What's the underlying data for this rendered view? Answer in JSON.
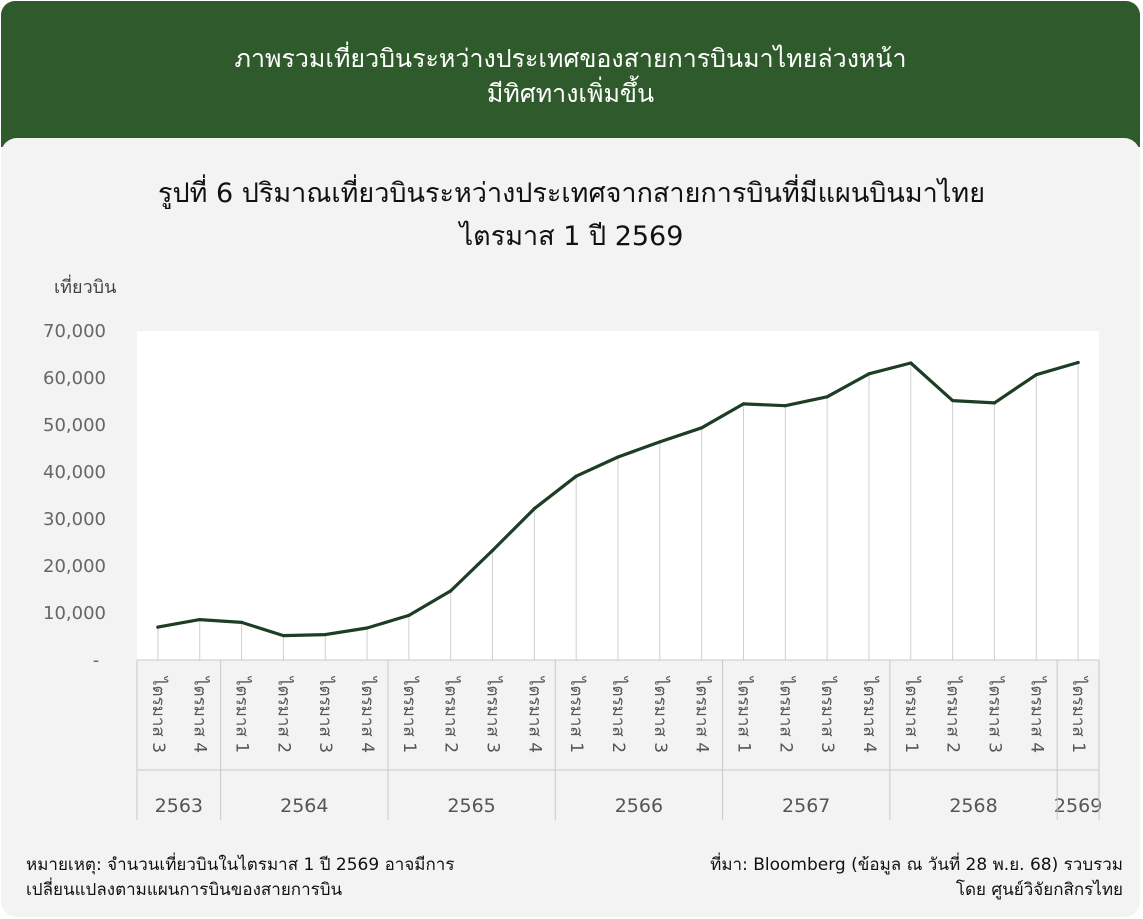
{
  "header": {
    "line1": "ภาพรวมเที่ยวบินระหว่างประเทศของสายการบินมาไทยล่วงหน้า",
    "line2": "มีทิศทางเพิ่มขึ้น"
  },
  "chart_data": {
    "type": "line",
    "title_line1": "รูปที่ 6 ปริมาณเที่ยวบินระหว่างประเทศจากสายการบินที่มีแผนบินมาไทย",
    "title_line2": "ไตรมาส 1 ปี 2569",
    "ylabel": "เที่ยวบิน",
    "ylim": [
      0,
      70000
    ],
    "yticks": [
      {
        "value": 0,
        "label": "-"
      },
      {
        "value": 10000,
        "label": "10,000"
      },
      {
        "value": 20000,
        "label": "20,000"
      },
      {
        "value": 30000,
        "label": "30,000"
      },
      {
        "value": 40000,
        "label": "40,000"
      },
      {
        "value": 50000,
        "label": "50,000"
      },
      {
        "value": 60000,
        "label": "60,000"
      },
      {
        "value": 70000,
        "label": "70,000"
      }
    ],
    "categories": [
      "ไตรมาส 3",
      "ไตรมาส 4",
      "ไตรมาส 1",
      "ไตรมาส 2",
      "ไตรมาส 3",
      "ไตรมาส 4",
      "ไตรมาส 1",
      "ไตรมาส 2",
      "ไตรมาส 3",
      "ไตรมาส 4",
      "ไตรมาส 1",
      "ไตรมาส 2",
      "ไตรมาส 3",
      "ไตรมาส 4",
      "ไตรมาส 1",
      "ไตรมาส 2",
      "ไตรมาส 3",
      "ไตรมาส 4",
      "ไตรมาส 1",
      "ไตรมาส 2",
      "ไตรมาส 3",
      "ไตรมาส 4",
      "ไตรมาส 1"
    ],
    "years": [
      {
        "label": "2563",
        "count": 2
      },
      {
        "label": "2564",
        "count": 4
      },
      {
        "label": "2565",
        "count": 4
      },
      {
        "label": "2566",
        "count": 4
      },
      {
        "label": "2567",
        "count": 4
      },
      {
        "label": "2568",
        "count": 4
      },
      {
        "label": "2569",
        "count": 1
      }
    ],
    "series": [
      {
        "values": [
          7000,
          8600,
          8000,
          5200,
          5400,
          6800,
          9500,
          14700,
          23300,
          32200,
          39100,
          43200,
          46400,
          49400,
          54500,
          54100,
          56000,
          60900,
          63200,
          55200,
          54700,
          60700,
          63300
        ]
      }
    ],
    "line_color": "#1d3d24",
    "grid": false
  },
  "notes": {
    "left_line1": "หมายเหตุ: จำนวนเที่ยวบินในไตรมาส 1 ปี 2569 อาจมีการ",
    "left_line2": "เปลี่ยนแปลงตามแผนการบินของสายการบิน",
    "right_line1": "ที่มา: Bloomberg (ข้อมูล ณ วันที่ 28 พ.ย. 68) รวบรวม",
    "right_line2": "โดย ศูนย์วิจัยกสิกรไทย"
  },
  "colors": {
    "header_bg": "#2f5a2b",
    "panel_bg": "#f3f3f3"
  }
}
